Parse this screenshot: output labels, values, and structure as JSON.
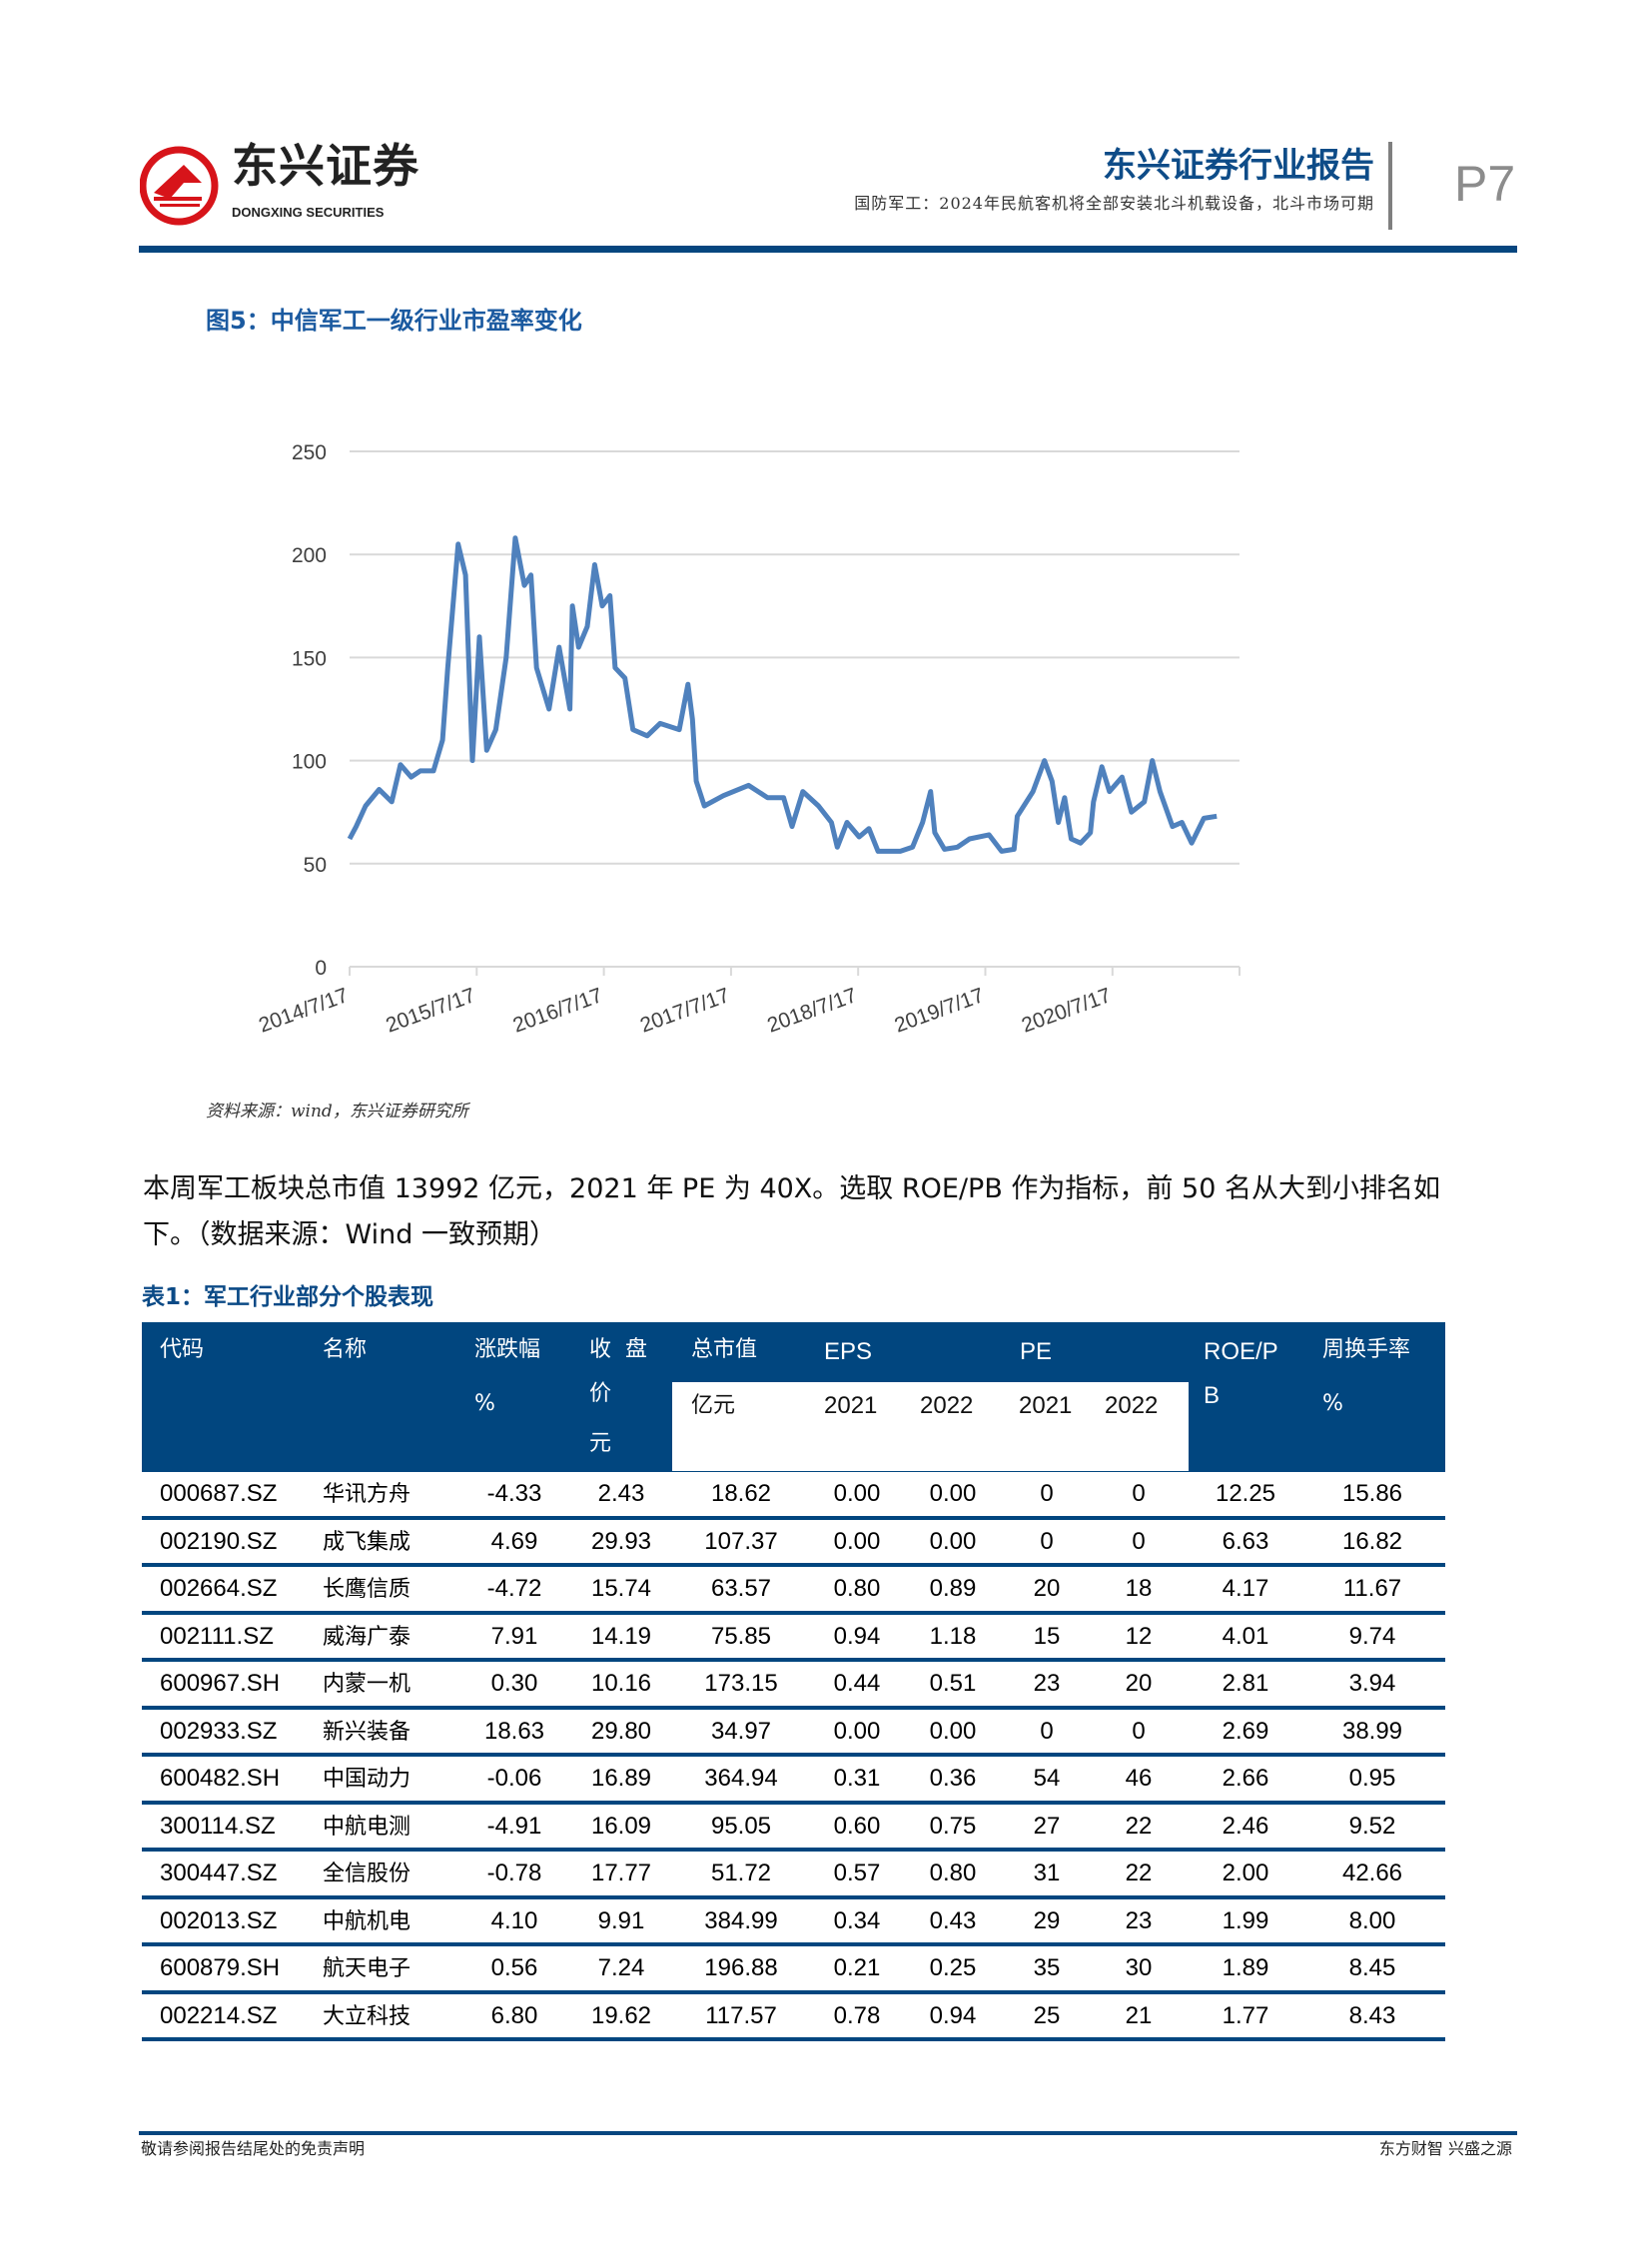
{
  "header": {
    "logo_cn": "东兴证券",
    "logo_en": "DONGXING SECURITIES",
    "report_title": "东兴证券行业报告",
    "report_subtitle": "国防军工：2024年民航客机将全部安装北斗机载设备，北斗市场可期",
    "page": "P7",
    "brand_color": "#0b4a86",
    "logo_color": "#d7141a"
  },
  "figure": {
    "title": "图5：中信军工一级行业市盈率变化",
    "source": "资料来源：wind，东兴证券研究所"
  },
  "chart_data": {
    "type": "line",
    "title": "",
    "xlabel": "",
    "ylabel": "",
    "ylim": [
      0,
      250
    ],
    "yticks": [
      "0",
      "50",
      "100",
      "150",
      "200",
      "250"
    ],
    "xticks": [
      "2014/7/17",
      "2015/7/17",
      "2016/7/17",
      "2017/7/17",
      "2018/7/17",
      "2019/7/17",
      "2020/7/17"
    ],
    "grid": "horizontal",
    "line_color": "#4f81bd",
    "series": [
      {
        "x": [
          "2014-07-17",
          "2014-08-05",
          "2014-09-01",
          "2014-10-10",
          "2014-11-15",
          "2014-12-10",
          "2015-01-10",
          "2015-02-05",
          "2015-03-15",
          "2015-04-10",
          "2015-04-25",
          "2015-05-25",
          "2015-06-15",
          "2015-07-05",
          "2015-07-25",
          "2015-08-15",
          "2015-09-10",
          "2015-10-10",
          "2015-11-05",
          "2015-12-01",
          "2015-12-20",
          "2016-01-05",
          "2016-02-10",
          "2016-03-10",
          "2016-04-10",
          "2016-04-17",
          "2016-05-05",
          "2016-05-30",
          "2016-06-20",
          "2016-07-12",
          "2016-08-03",
          "2016-08-18",
          "2016-09-15",
          "2016-10-08",
          "2016-11-18",
          "2016-12-25",
          "2017-02-18",
          "2017-03-15",
          "2017-03-28",
          "2017-04-08",
          "2017-05-01",
          "2017-06-25",
          "2017-09-05",
          "2017-10-30",
          "2017-12-15",
          "2018-01-08",
          "2018-02-08",
          "2018-03-25",
          "2018-05-01",
          "2018-05-18",
          "2018-06-15",
          "2018-07-20",
          "2018-08-17",
          "2018-09-12",
          "2018-11-15",
          "2018-12-20",
          "2019-01-18",
          "2019-02-10",
          "2019-02-22",
          "2019-03-22",
          "2019-04-28",
          "2019-06-02",
          "2019-07-28",
          "2019-09-02",
          "2019-10-08",
          "2019-10-17",
          "2019-12-01",
          "2020-01-03",
          "2020-01-25",
          "2020-02-12",
          "2020-03-01",
          "2020-03-20",
          "2020-04-16",
          "2020-05-14",
          "2020-05-23",
          "2020-06-16",
          "2020-07-08",
          "2020-08-13",
          "2020-09-09",
          "2020-10-16",
          "2020-11-08",
          "2020-11-30",
          "2021-01-05",
          "2021-02-01",
          "2021-03-01",
          "2021-04-05",
          "2021-05-12"
        ],
        "y": [
          62,
          68,
          78,
          86,
          80,
          98,
          92,
          95,
          95,
          110,
          145,
          205,
          190,
          100,
          160,
          105,
          115,
          150,
          208,
          185,
          190,
          145,
          125,
          155,
          125,
          175,
          155,
          165,
          195,
          175,
          180,
          145,
          140,
          115,
          112,
          118,
          115,
          137,
          120,
          90,
          78,
          83,
          88,
          82,
          82,
          68,
          85,
          78,
          70,
          58,
          70,
          63,
          67,
          56,
          56,
          58,
          70,
          85,
          65,
          57,
          58,
          62,
          64,
          56,
          57,
          73,
          85,
          100,
          90,
          70,
          82,
          62,
          60,
          65,
          80,
          97,
          85,
          92,
          75,
          80,
          100,
          85,
          68,
          70,
          60,
          72,
          73
        ]
      }
    ]
  },
  "body": {
    "line1": "本周军工板块总市值 13992 亿元，2021 年 PE 为 40X。选取 ROE/PB 作为指标，前 50 名从大到小排名如",
    "line2": "下。（数据来源：Wind 一致预期）"
  },
  "table": {
    "title": "表1：军工行业部分个股表现",
    "headers": {
      "code": "代码",
      "name": "名称",
      "change": "涨跌幅",
      "change_unit": "%",
      "close_1": "收  盘",
      "close_2": "价",
      "close_3": "元",
      "mktcap": "总市值",
      "mktcap_unit": "亿元",
      "eps": "EPS",
      "pe": "PE",
      "eps_2021": "2021",
      "eps_2022": "2022",
      "pe_2021": "2021",
      "pe_2022": "2022",
      "roepb_1": "ROE/P",
      "roepb_2": "B",
      "turnover": "周换手率",
      "turnover_unit": "%"
    },
    "rows": [
      [
        "000687.SZ",
        "华讯方舟",
        "-4.33",
        "2.43",
        "18.62",
        "0.00",
        "0.00",
        "0",
        "0",
        "12.25",
        "15.86"
      ],
      [
        "002190.SZ",
        "成飞集成",
        "4.69",
        "29.93",
        "107.37",
        "0.00",
        "0.00",
        "0",
        "0",
        "6.63",
        "16.82"
      ],
      [
        "002664.SZ",
        "长鹰信质",
        "-4.72",
        "15.74",
        "63.57",
        "0.80",
        "0.89",
        "20",
        "18",
        "4.17",
        "11.67"
      ],
      [
        "002111.SZ",
        "威海广泰",
        "7.91",
        "14.19",
        "75.85",
        "0.94",
        "1.18",
        "15",
        "12",
        "4.01",
        "9.74"
      ],
      [
        "600967.SH",
        "内蒙一机",
        "0.30",
        "10.16",
        "173.15",
        "0.44",
        "0.51",
        "23",
        "20",
        "2.81",
        "3.94"
      ],
      [
        "002933.SZ",
        "新兴装备",
        "18.63",
        "29.80",
        "34.97",
        "0.00",
        "0.00",
        "0",
        "0",
        "2.69",
        "38.99"
      ],
      [
        "600482.SH",
        "中国动力",
        "-0.06",
        "16.89",
        "364.94",
        "0.31",
        "0.36",
        "54",
        "46",
        "2.66",
        "0.95"
      ],
      [
        "300114.SZ",
        "中航电测",
        "-4.91",
        "16.09",
        "95.05",
        "0.60",
        "0.75",
        "27",
        "22",
        "2.46",
        "9.52"
      ],
      [
        "300447.SZ",
        "全信股份",
        "-0.78",
        "17.77",
        "51.72",
        "0.57",
        "0.80",
        "31",
        "22",
        "2.00",
        "42.66"
      ],
      [
        "002013.SZ",
        "中航机电",
        "4.10",
        "9.91",
        "384.99",
        "0.34",
        "0.43",
        "29",
        "23",
        "1.99",
        "8.00"
      ],
      [
        "600879.SH",
        "航天电子",
        "0.56",
        "7.24",
        "196.88",
        "0.21",
        "0.25",
        "35",
        "30",
        "1.89",
        "8.45"
      ],
      [
        "002214.SZ",
        "大立科技",
        "6.80",
        "19.62",
        "117.57",
        "0.78",
        "0.94",
        "25",
        "21",
        "1.77",
        "8.43"
      ]
    ]
  },
  "footer": {
    "left": "敬请参阅报告结尾处的免责声明",
    "right": "东方财智 兴盛之源"
  }
}
